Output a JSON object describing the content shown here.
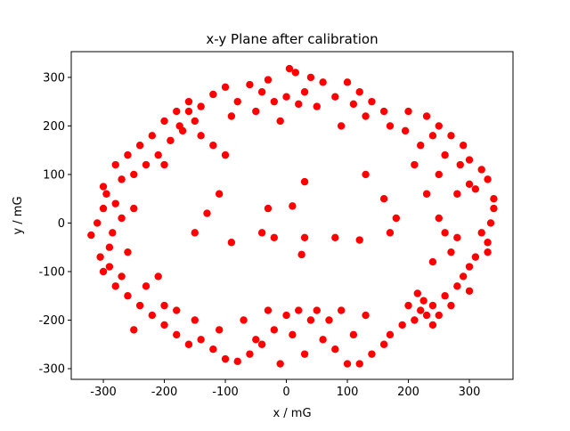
{
  "chart_data": {
    "type": "scatter",
    "title": "x-y Plane after calibration",
    "xlabel": "x / mG",
    "ylabel": "y / mG",
    "color": "#ff0000",
    "x": [
      5,
      15,
      -30,
      40,
      60,
      -60,
      -100,
      100,
      120,
      80,
      0,
      -20,
      30,
      50,
      -50,
      -80,
      -120,
      -140,
      140,
      160,
      -160,
      130,
      -10,
      90,
      170,
      -175,
      20,
      -40,
      110,
      -90,
      200,
      230,
      250,
      270,
      290,
      300,
      320,
      330,
      310,
      280,
      240,
      220,
      260,
      285,
      250,
      210,
      300,
      230,
      340,
      195,
      340,
      335,
      320,
      330,
      310,
      300,
      290,
      270,
      260,
      250,
      280,
      240,
      330,
      280,
      260,
      240,
      230,
      220,
      210,
      250,
      225,
      200,
      190,
      170,
      160,
      140,
      120,
      300,
      270,
      240,
      215,
      100,
      80,
      60,
      40,
      20,
      0,
      -20,
      -40,
      -60,
      -80,
      -100,
      -120,
      -140,
      -10,
      30,
      70,
      110,
      -30,
      -70,
      -110,
      130,
      90,
      -50,
      10,
      50,
      -160,
      -180,
      -200,
      -220,
      -240,
      -260,
      -280,
      -300,
      -250,
      -230,
      -200,
      -270,
      -210,
      -180,
      -150,
      -290,
      -320,
      -310,
      -300,
      -295,
      -290,
      -305,
      -280,
      -270,
      -285,
      -260,
      -250,
      -300,
      -280,
      -260,
      -240,
      -220,
      -200,
      -180,
      -160,
      -250,
      -230,
      -210,
      -190,
      -170,
      -150,
      -270,
      -200,
      -140,
      -120,
      -100,
      30,
      -30,
      10,
      -20,
      30,
      -40,
      80,
      120,
      170,
      160,
      180,
      130,
      -90,
      25,
      -130,
      -150,
      -110
    ],
    "values": [
      318,
      310,
      295,
      300,
      290,
      285,
      280,
      290,
      270,
      260,
      260,
      250,
      270,
      240,
      230,
      250,
      265,
      240,
      250,
      230,
      230,
      220,
      210,
      200,
      200,
      200,
      245,
      270,
      245,
      220,
      230,
      220,
      200,
      180,
      160,
      130,
      110,
      90,
      70,
      60,
      180,
      160,
      140,
      120,
      100,
      120,
      80,
      60,
      50,
      190,
      30,
      0,
      -20,
      -40,
      -70,
      -90,
      -110,
      -60,
      -20,
      10,
      -30,
      -80,
      -60,
      -130,
      -150,
      -170,
      -190,
      -180,
      -200,
      -190,
      -160,
      -170,
      -210,
      -230,
      -250,
      -270,
      -290,
      -140,
      -170,
      -210,
      -145,
      -290,
      -260,
      -240,
      -200,
      -180,
      -190,
      -220,
      -250,
      -270,
      -285,
      -280,
      -260,
      -240,
      -290,
      -270,
      -200,
      -230,
      -180,
      -200,
      -220,
      -190,
      -180,
      -240,
      -230,
      -180,
      -250,
      -230,
      -210,
      -190,
      -170,
      -150,
      -130,
      -100,
      -220,
      -130,
      -170,
      -110,
      -110,
      -180,
      -200,
      -90,
      -25,
      0,
      30,
      60,
      -50,
      -70,
      40,
      10,
      -20,
      -60,
      30,
      75,
      120,
      140,
      160,
      180,
      210,
      230,
      250,
      100,
      120,
      140,
      170,
      190,
      210,
      90,
      120,
      180,
      160,
      140,
      85,
      30,
      35,
      -30,
      -30,
      -20,
      -30,
      -35,
      -20,
      50,
      10,
      100,
      -40,
      -65,
      20,
      -20,
      60
    ],
    "xlim": [
      -352.6,
      371.5
    ],
    "ylim": [
      -322,
      353
    ],
    "xticks": [
      -300,
      -200,
      -100,
      0,
      100,
      200,
      300
    ],
    "yticks": [
      -300,
      -200,
      -100,
      0,
      100,
      200,
      300
    ]
  }
}
